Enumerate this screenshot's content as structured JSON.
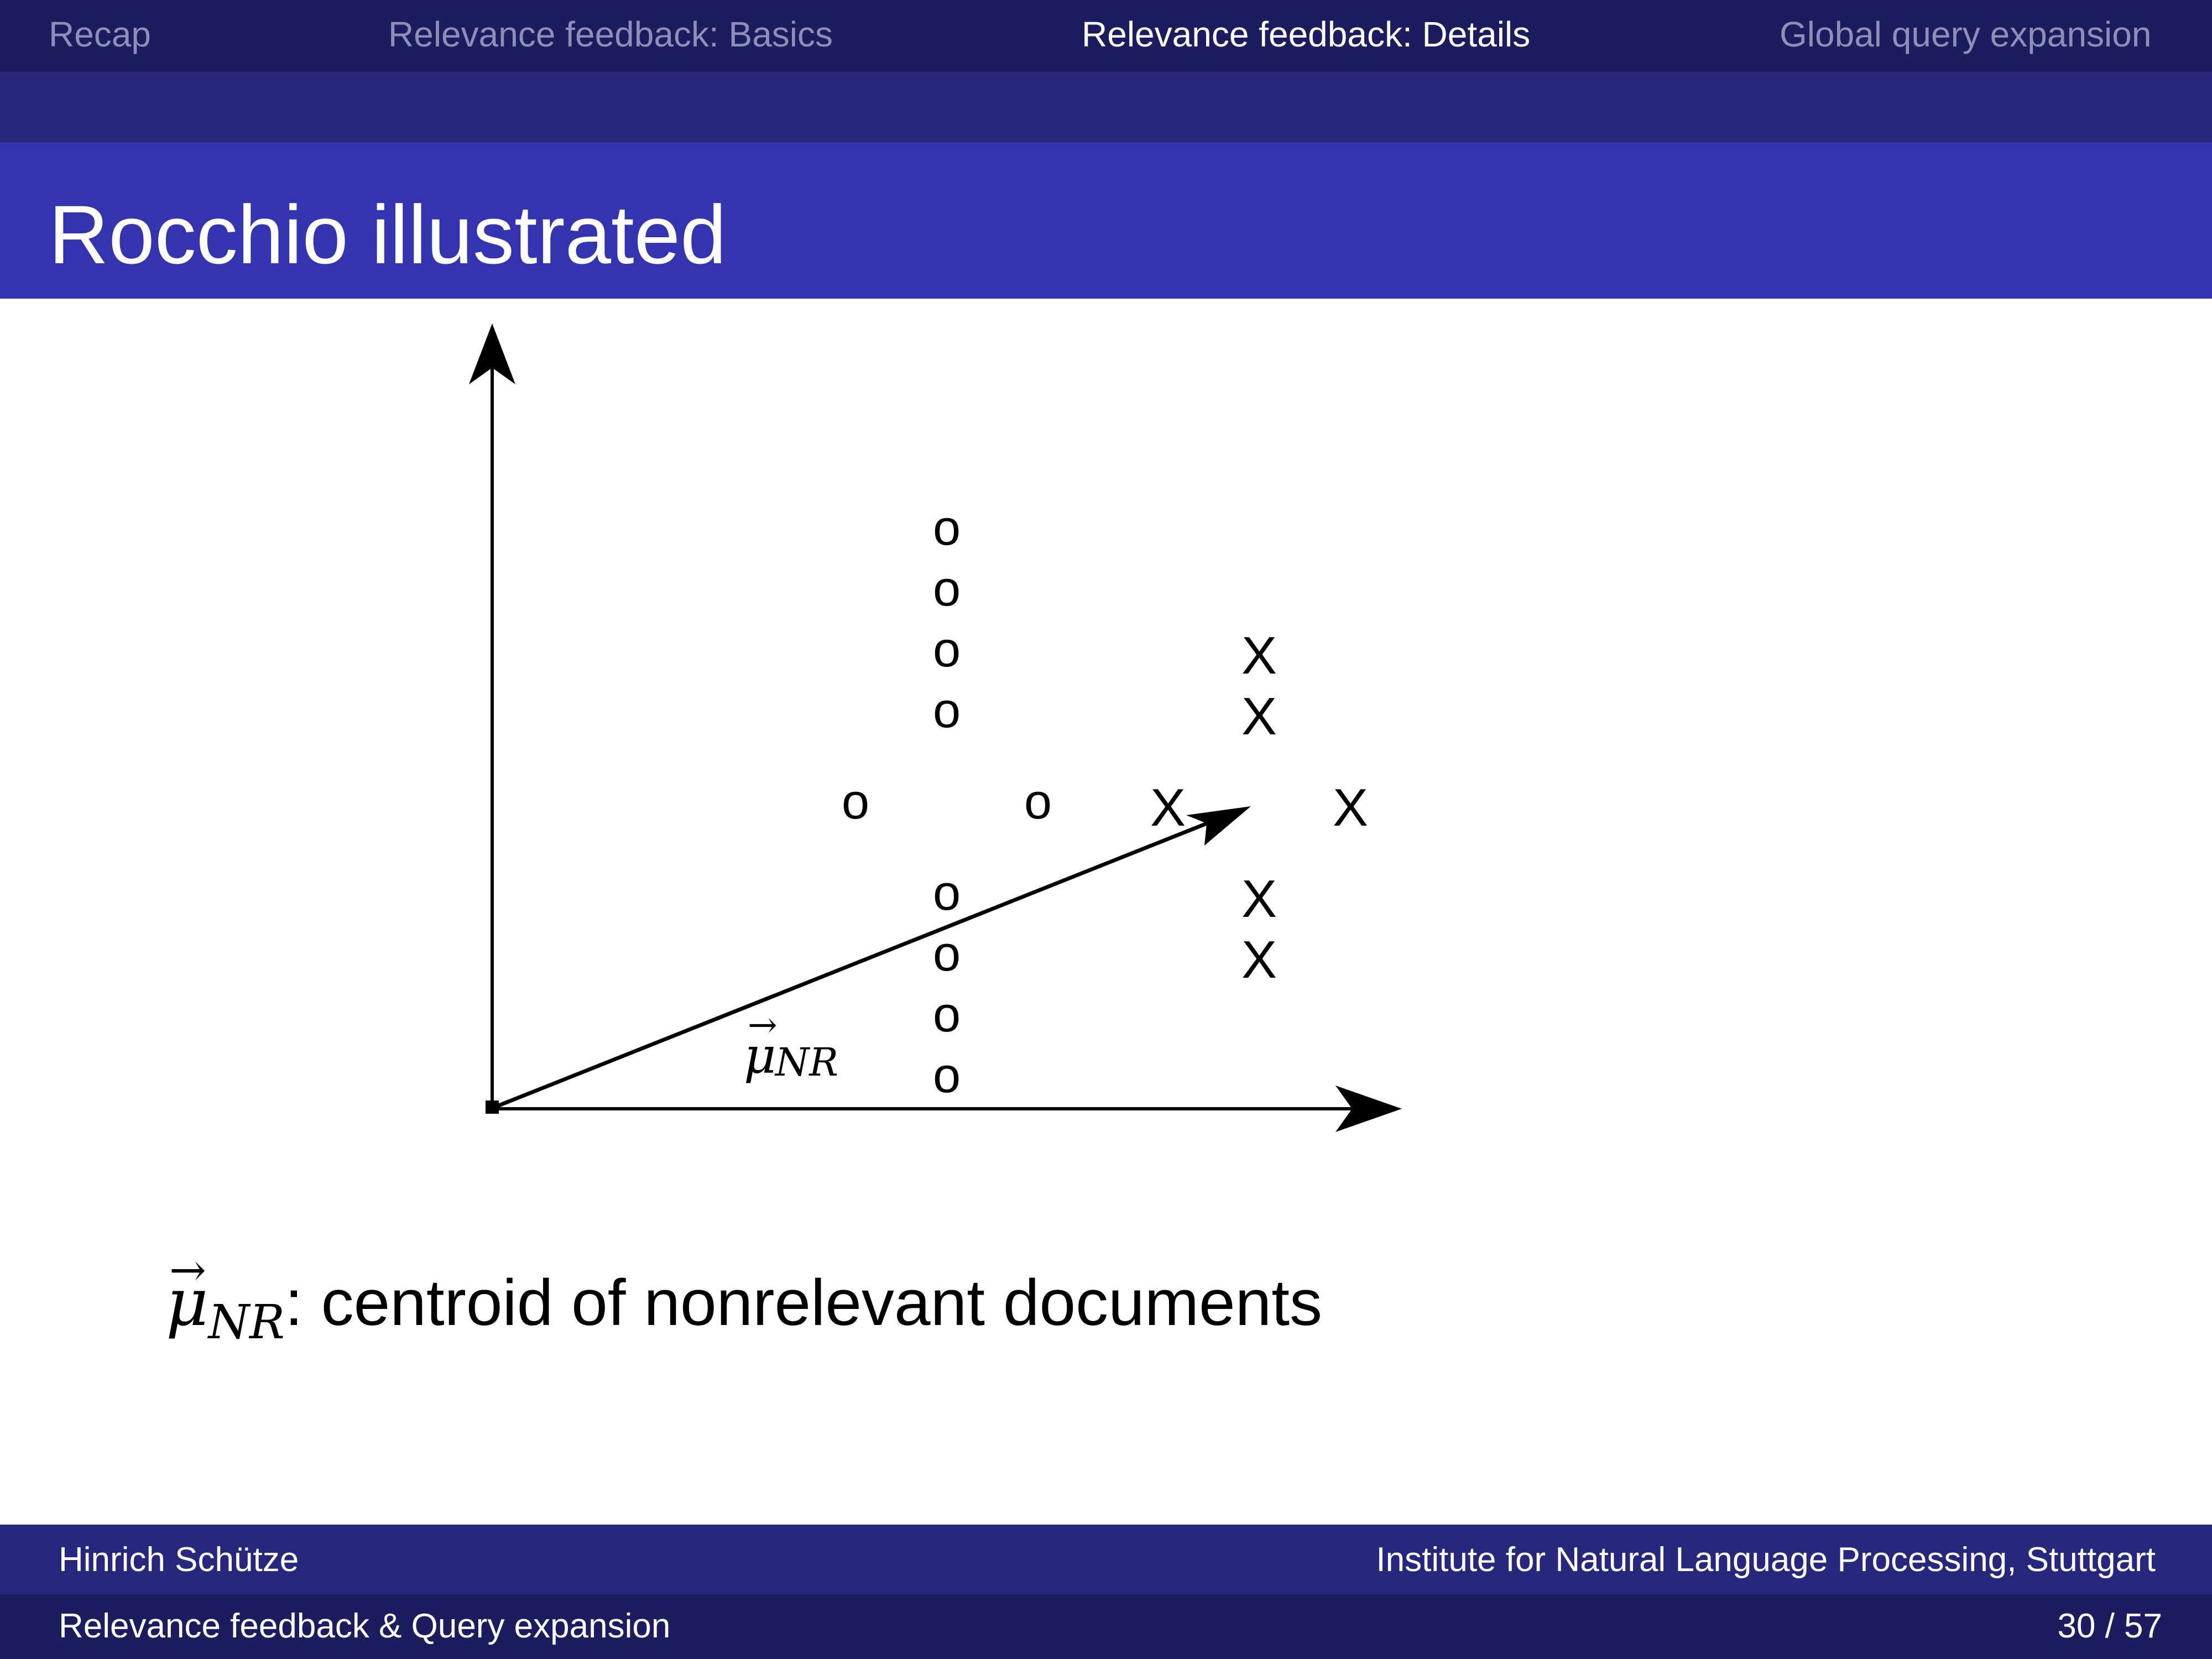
{
  "nav": {
    "items": [
      {
        "label": "Recap",
        "active": false
      },
      {
        "label": "Relevance feedback: Basics",
        "active": false
      },
      {
        "label": "Relevance feedback: Details",
        "active": true
      },
      {
        "label": "Global query expansion",
        "active": false
      }
    ]
  },
  "slide": {
    "title": "Rocchio illustrated"
  },
  "diagram": {
    "marker_o": "o",
    "marker_x": "X",
    "vector_label_symbol": "μ",
    "vector_label_subscript": "NR"
  },
  "caption": {
    "symbol": "μ",
    "subscript": "NR",
    "text": ": centroid of nonrelevant documents"
  },
  "footer": {
    "author": "Hinrich Schütze",
    "institute": "Institute for Natural Language Processing, Stuttgart",
    "talk_title": "Relevance feedback & Query expansion",
    "page": "30 / 57"
  },
  "colors": {
    "nav_bg": "#1c1c5e",
    "subnav_bg": "#27277e",
    "title_bg": "#3434b0",
    "nav_inactive": "#8e8eb8",
    "nav_active": "#ffffff"
  }
}
